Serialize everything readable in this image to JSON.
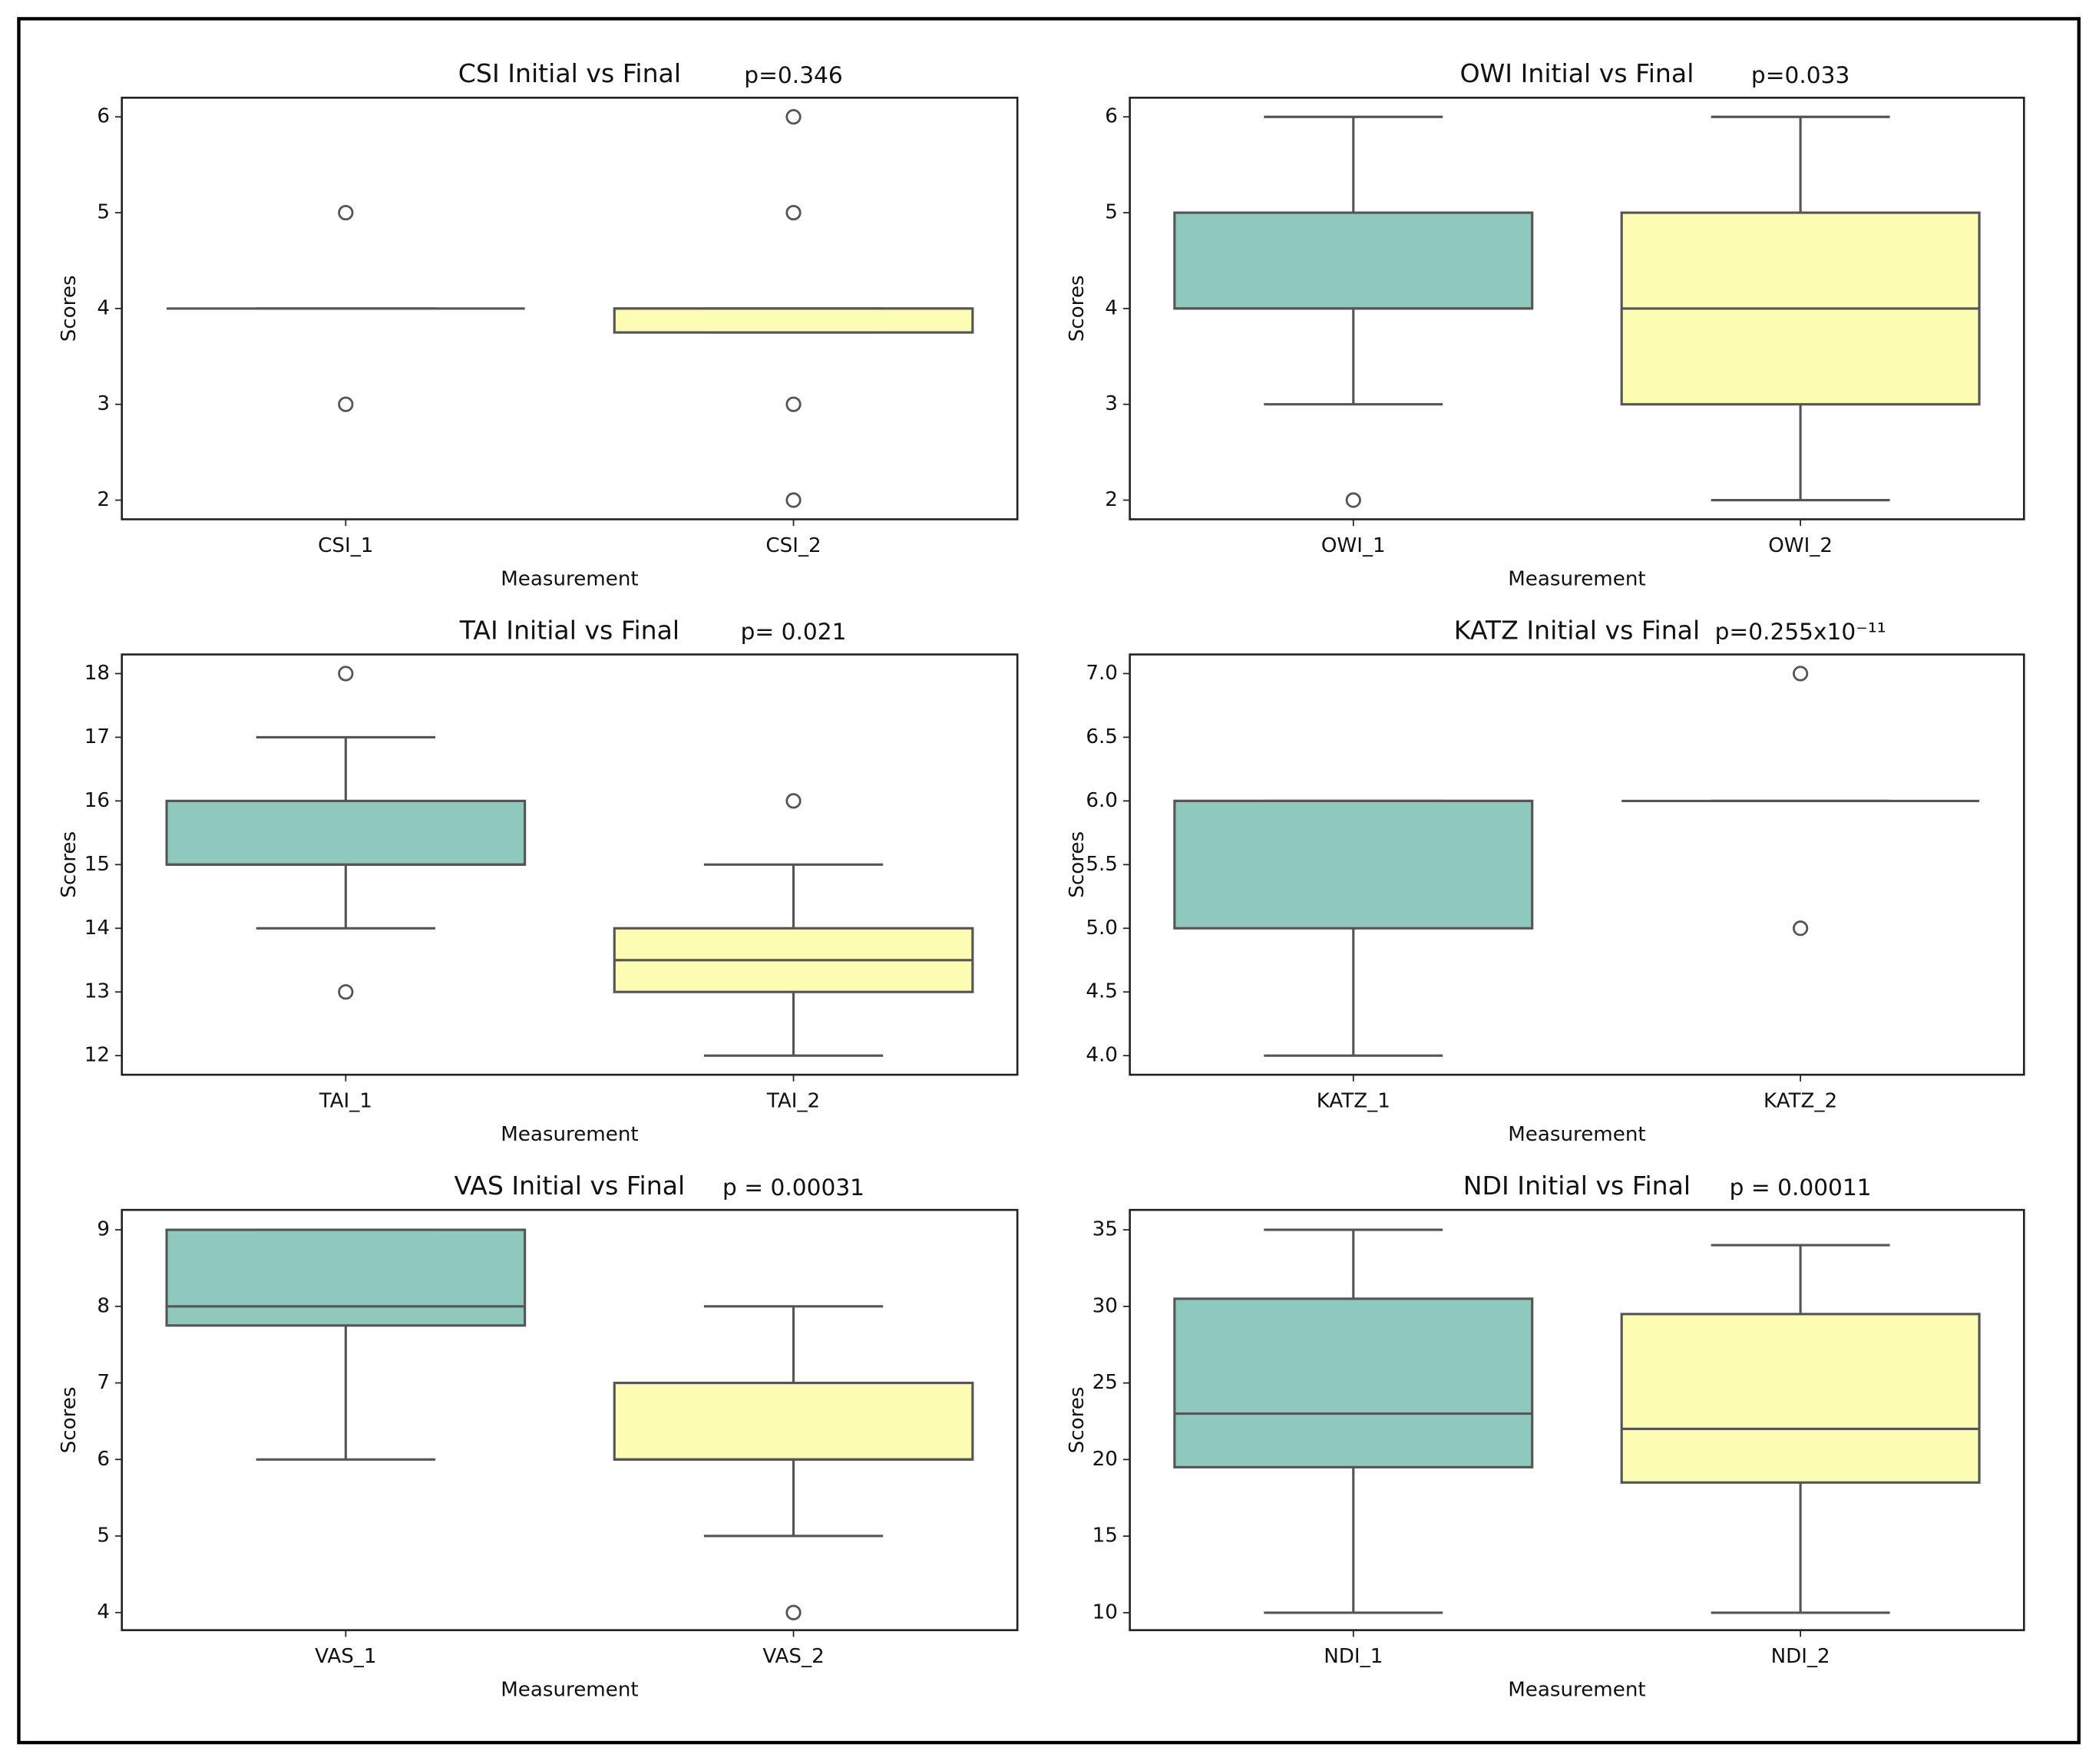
{
  "chart_data": [
    {
      "type": "box",
      "title": "CSI Initial vs Final",
      "annotation": "p=0.346",
      "xlabel": "Measurement",
      "ylabel": "Scores",
      "categories": [
        "CSI_1",
        "CSI_2"
      ],
      "colors": [
        "#8fc8bc",
        "#fdfcb3"
      ],
      "boxes": [
        {
          "min": 4,
          "q1": 4,
          "median": 4,
          "q3": 4,
          "max": 4,
          "outliers": [
            5,
            3
          ]
        },
        {
          "min": 3.75,
          "q1": 3.75,
          "median": 4,
          "q3": 4,
          "max": 4,
          "outliers": [
            6,
            5,
            3,
            2
          ]
        }
      ],
      "ylim": [
        1.8,
        6.2
      ],
      "yticks": [
        2,
        3,
        4,
        5,
        6
      ]
    },
    {
      "type": "box",
      "title": "OWI Initial vs Final",
      "annotation": "p=0.033",
      "xlabel": "Measurement",
      "ylabel": "Scores",
      "categories": [
        "OWI_1",
        "OWI_2"
      ],
      "colors": [
        "#8fc8bc",
        "#fdfcb3"
      ],
      "boxes": [
        {
          "min": 3,
          "q1": 4,
          "median": 4,
          "q3": 5,
          "max": 6,
          "outliers": [
            2
          ]
        },
        {
          "min": 2,
          "q1": 3,
          "median": 4,
          "q3": 5,
          "max": 6,
          "outliers": []
        }
      ],
      "ylim": [
        1.8,
        6.2
      ],
      "yticks": [
        2,
        3,
        4,
        5,
        6
      ]
    },
    {
      "type": "box",
      "title": "TAI Initial vs Final",
      "annotation": "p= 0.021",
      "xlabel": "Measurement",
      "ylabel": "Scores",
      "categories": [
        "TAI_1",
        "TAI_2"
      ],
      "colors": [
        "#8fc8bc",
        "#fdfcb3"
      ],
      "boxes": [
        {
          "min": 14,
          "q1": 15,
          "median": 15,
          "q3": 16,
          "max": 17,
          "outliers": [
            18,
            13
          ]
        },
        {
          "min": 12,
          "q1": 13,
          "median": 13.5,
          "q3": 14,
          "max": 15,
          "outliers": [
            16
          ]
        }
      ],
      "ylim": [
        11.7,
        18.3
      ],
      "yticks": [
        12,
        13,
        14,
        15,
        16,
        17,
        18
      ]
    },
    {
      "type": "box",
      "title": "KATZ Initial vs Final",
      "annotation": "p=0.255x10⁻¹¹",
      "xlabel": "Measurement",
      "ylabel": "Scores",
      "categories": [
        "KATZ_1",
        "KATZ_2"
      ],
      "colors": [
        "#8fc8bc",
        "#fdfcb3"
      ],
      "boxes": [
        {
          "min": 4,
          "q1": 5,
          "median": 6,
          "q3": 6,
          "max": 6,
          "outliers": []
        },
        {
          "min": 6,
          "q1": 6,
          "median": 6,
          "q3": 6,
          "max": 6,
          "outliers": [
            7,
            5
          ]
        }
      ],
      "ylim": [
        3.85,
        7.15
      ],
      "yticks": [
        {
          "value": 4,
          "label": "4.0"
        },
        4.5,
        {
          "value": 5,
          "label": "5.0"
        },
        5.5,
        {
          "value": 6,
          "label": "6.0"
        },
        6.5,
        {
          "value": 7,
          "label": "7.0"
        }
      ]
    },
    {
      "type": "box",
      "title": "VAS Initial vs Final",
      "annotation": "p = 0.00031",
      "xlabel": "Measurement",
      "ylabel": "Scores",
      "categories": [
        "VAS_1",
        "VAS_2"
      ],
      "colors": [
        "#8fc8bc",
        "#fdfcb3"
      ],
      "boxes": [
        {
          "min": 6,
          "q1": 7.75,
          "median": 8,
          "q3": 9,
          "max": 9,
          "outliers": []
        },
        {
          "min": 5,
          "q1": 6,
          "median": 6,
          "q3": 7,
          "max": 8,
          "outliers": [
            4
          ]
        }
      ],
      "ylim": [
        3.77,
        9.26
      ],
      "yticks": [
        4,
        5,
        6,
        7,
        8,
        9
      ]
    },
    {
      "type": "box",
      "title": "NDI Initial vs Final",
      "annotation": "p = 0.00011",
      "xlabel": "Measurement",
      "ylabel": "Scores",
      "categories": [
        "NDI_1",
        "NDI_2"
      ],
      "colors": [
        "#8fc8bc",
        "#fdfcb3"
      ],
      "boxes": [
        {
          "min": 10,
          "q1": 19.5,
          "median": 23,
          "q3": 30.5,
          "max": 35,
          "outliers": []
        },
        {
          "min": 10,
          "q1": 18.5,
          "median": 22,
          "q3": 29.5,
          "max": 34,
          "outliers": []
        }
      ],
      "ylim": [
        8.86,
        36.3
      ],
      "yticks": [
        10,
        15,
        20,
        25,
        30,
        35
      ]
    }
  ]
}
